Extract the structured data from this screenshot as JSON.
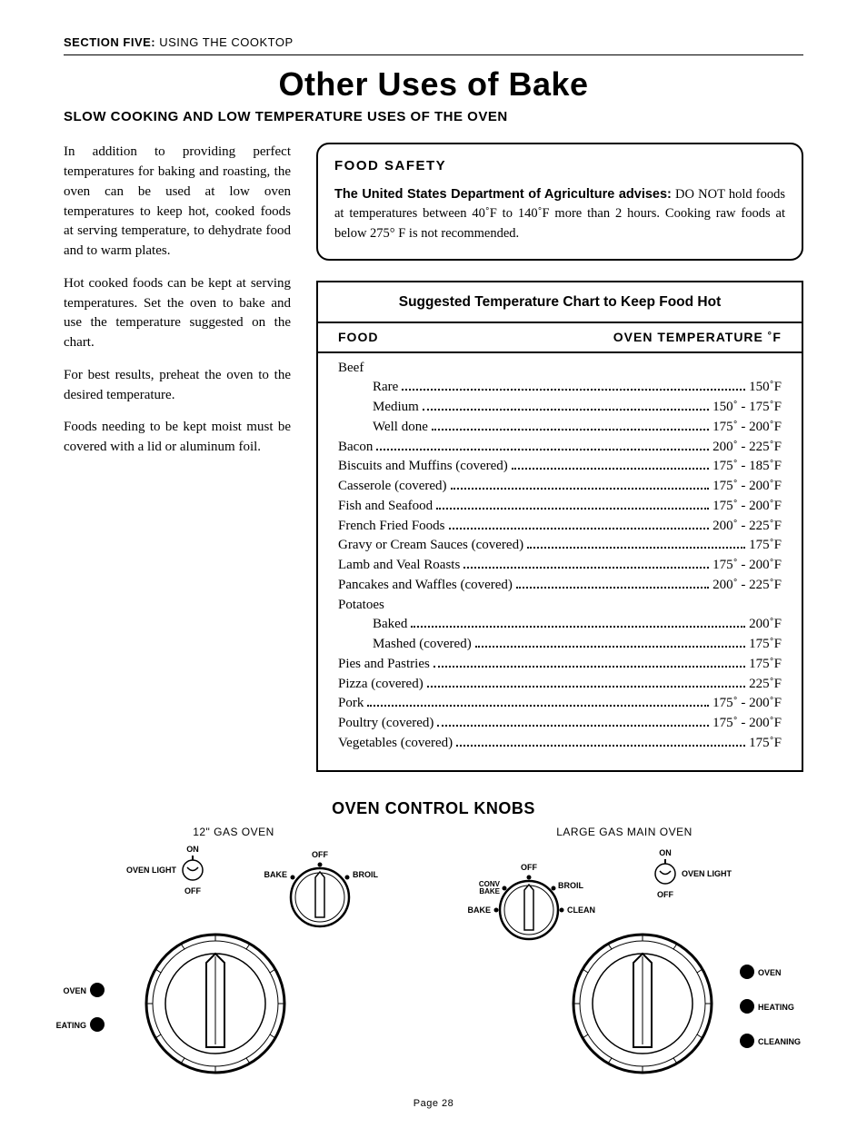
{
  "section_header": {
    "bold": "SECTION FIVE:",
    "rest": " USING THE COOKTOP"
  },
  "title": "Other Uses of Bake",
  "subtitle": "SLOW COOKING AND LOW TEMPERATURE USES OF THE OVEN",
  "paragraphs": [
    "In addition to providing perfect temperatures for baking and roasting, the oven can be used at low oven temperatures to keep hot, cooked foods at serving temperature, to dehydrate food and to warm plates.",
    "Hot cooked foods can be kept at serving temperatures.  Set the oven to bake and use the temperature suggested on the chart.",
    "For best results, preheat the oven to the desired temperature.",
    "Foods needing to be kept moist must be covered with a lid or aluminum foil."
  ],
  "safety": {
    "heading": "FOOD  SAFETY",
    "bold": "The United States Department of Agriculture advises:",
    "body": " DO NOT hold foods at temperatures between 40˚F to 140˚F more than 2 hours. Cooking raw foods at below 275° F is not recommended."
  },
  "chart": {
    "title": "Suggested Temperature Chart to Keep Food Hot",
    "col1": "FOOD",
    "col2": "OVEN  TEMPERATURE  ˚F",
    "rows": [
      {
        "label": "Beef",
        "temp": "",
        "type": "group"
      },
      {
        "label": "Rare",
        "temp": "150˚F",
        "type": "sub"
      },
      {
        "label": "Medium",
        "temp": "150˚ - 175˚F",
        "type": "sub"
      },
      {
        "label": "Well done",
        "temp": "175˚ - 200˚F",
        "type": "sub"
      },
      {
        "label": "Bacon",
        "temp": "200˚ - 225˚F",
        "type": "item"
      },
      {
        "label": "Biscuits and Muffins (covered)",
        "temp": "175˚ - 185˚F",
        "type": "item"
      },
      {
        "label": "Casserole (covered)",
        "temp": "175˚ - 200˚F",
        "type": "item"
      },
      {
        "label": "Fish and Seafood",
        "temp": "175˚ - 200˚F",
        "type": "item"
      },
      {
        "label": "French Fried Foods",
        "temp": "200˚ - 225˚F",
        "type": "item"
      },
      {
        "label": "Gravy or Cream Sauces (covered)",
        "temp": "175˚F",
        "type": "item"
      },
      {
        "label": "Lamb and Veal Roasts",
        "temp": "175˚ - 200˚F",
        "type": "item"
      },
      {
        "label": "Pancakes and Waffles (covered)",
        "temp": "200˚ - 225˚F",
        "type": "item"
      },
      {
        "label": "Potatoes",
        "temp": "",
        "type": "group"
      },
      {
        "label": "Baked",
        "temp": "200˚F",
        "type": "sub"
      },
      {
        "label": "Mashed (covered)",
        "temp": "175˚F",
        "type": "sub"
      },
      {
        "label": "Pies and Pastries",
        "temp": "175˚F",
        "type": "item"
      },
      {
        "label": "Pizza (covered)",
        "temp": "225˚F",
        "type": "item"
      },
      {
        "label": "Pork",
        "temp": "175˚ - 200˚F",
        "type": "item"
      },
      {
        "label": "Poultry (covered)",
        "temp": "175˚ - 200˚F",
        "type": "item"
      },
      {
        "label": "Vegetables (covered)",
        "temp": "175˚F",
        "type": "item"
      }
    ]
  },
  "knobs": {
    "heading": "OVEN CONTROL KNOBS",
    "left": {
      "title": "12\" GAS OVEN",
      "switch": {
        "on": "ON",
        "off": "OFF",
        "label": "OVEN LIGHT"
      },
      "mode": {
        "off": "OFF",
        "bake": "BAKE",
        "broil": "BROIL"
      },
      "indicators": [
        "OVEN",
        "HEATING"
      ]
    },
    "right": {
      "title": "LARGE GAS MAIN OVEN",
      "switch": {
        "on": "ON",
        "off": "OFF",
        "label": "OVEN LIGHT"
      },
      "mode": {
        "off": "OFF",
        "bake": "BAKE",
        "conv": "CONV\nBAKE",
        "broil": "BROIL",
        "clean": "CLEAN"
      },
      "indicators": [
        "OVEN",
        "HEATING",
        "CLEANING"
      ]
    }
  },
  "page": "Page  28"
}
